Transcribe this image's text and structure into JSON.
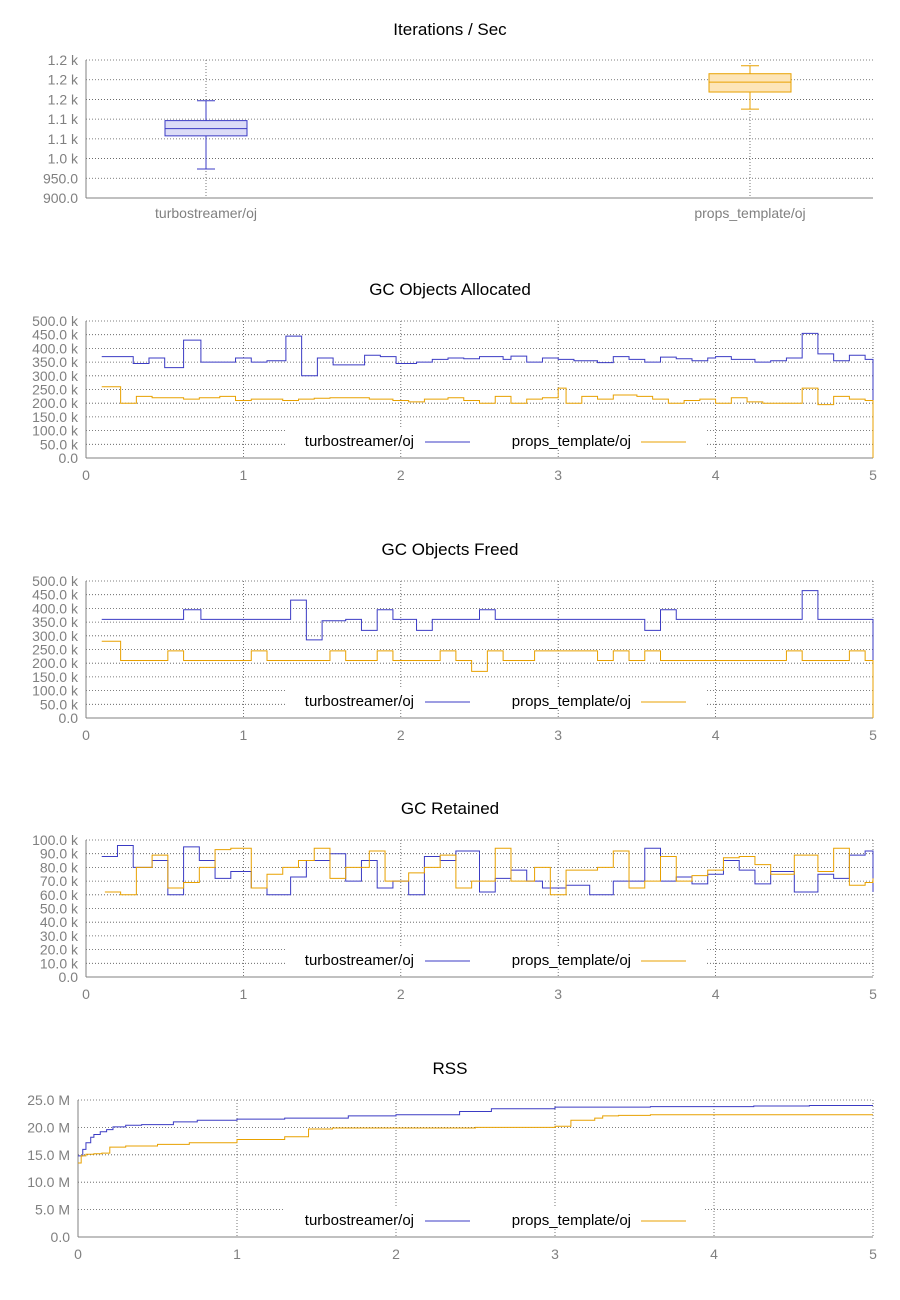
{
  "colors": {
    "turbo": "#3b3bc4",
    "props": "#e8a100",
    "turbo_fill": "#dcdcf7",
    "props_fill": "#fde5b8",
    "grid": "#555555",
    "axis": "#808080"
  },
  "chart_data": [
    {
      "type": "box",
      "title": "Iterations / Sec",
      "categories": [
        "turbostreamer/oj",
        "props_template/oj"
      ],
      "yticks": [
        "900.0",
        "950.0",
        "1.0 k",
        "1.1 k",
        "1.1 k",
        "1.2 k",
        "1.2 k",
        "1.2 k"
      ],
      "ylim": [
        900,
        1262
      ],
      "grid": true,
      "boxes": [
        {
          "name": "turbostreamer/oj",
          "min": 976,
          "q1": 1063,
          "median": 1082,
          "q3": 1103,
          "max": 1155
        },
        {
          "name": "props_template/oj",
          "min": 1133,
          "q1": 1178,
          "median": 1204,
          "q3": 1226,
          "max": 1247
        }
      ]
    },
    {
      "type": "line",
      "title": "GC Objects Allocated",
      "xlim": [
        0,
        5
      ],
      "ylim": [
        0,
        500000
      ],
      "xticks": [
        "0",
        "1",
        "2",
        "3",
        "4",
        "5"
      ],
      "yticks": [
        "0.0",
        "50.0 k",
        "100.0 k",
        "150.0 k",
        "200.0 k",
        "250.0 k",
        "300.0 k",
        "350.0 k",
        "400.0 k",
        "450.0 k",
        "500.0 k"
      ],
      "grid": true,
      "legend": "bottom-center",
      "series": [
        {
          "name": "turbostreamer/oj",
          "x": [
            0.1,
            0.3,
            0.4,
            0.5,
            0.62,
            0.73,
            0.95,
            1.05,
            1.15,
            1.27,
            1.37,
            1.47,
            1.57,
            1.77,
            1.87,
            1.97,
            2.1,
            2.2,
            2.3,
            2.4,
            2.5,
            2.65,
            2.7,
            2.8,
            2.9,
            3.0,
            3.1,
            3.25,
            3.35,
            3.45,
            3.55,
            3.65,
            3.75,
            3.85,
            3.95,
            4.0,
            4.1,
            4.25,
            4.35,
            4.45,
            4.55,
            4.65,
            4.75,
            4.85,
            4.95,
            5.0
          ],
          "y": [
            370000,
            345000,
            365000,
            330000,
            430000,
            350000,
            365000,
            350000,
            355000,
            445000,
            300000,
            365000,
            340000,
            375000,
            370000,
            345000,
            350000,
            360000,
            365000,
            362000,
            370000,
            360000,
            372000,
            350000,
            365000,
            360000,
            355000,
            348000,
            370000,
            360000,
            350000,
            368000,
            362000,
            355000,
            365000,
            370000,
            360000,
            350000,
            355000,
            365000,
            455000,
            380000,
            355000,
            375000,
            360000,
            0
          ]
        },
        {
          "name": "props_template/oj",
          "x": [
            0.1,
            0.22,
            0.32,
            0.42,
            0.62,
            0.72,
            0.85,
            0.95,
            1.05,
            1.25,
            1.35,
            1.45,
            1.55,
            1.7,
            1.8,
            1.95,
            2.05,
            2.15,
            2.3,
            2.4,
            2.5,
            2.6,
            2.7,
            2.8,
            2.9,
            3.0,
            3.05,
            3.15,
            3.25,
            3.35,
            3.5,
            3.6,
            3.7,
            3.8,
            3.9,
            4.0,
            4.1,
            4.2,
            4.3,
            4.45,
            4.55,
            4.65,
            4.75,
            4.85,
            4.95,
            5.0
          ],
          "y": [
            260000,
            200000,
            225000,
            220000,
            215000,
            220000,
            225000,
            210000,
            215000,
            210000,
            215000,
            218000,
            220000,
            220000,
            215000,
            210000,
            205000,
            215000,
            220000,
            210000,
            200000,
            225000,
            200000,
            215000,
            220000,
            255000,
            200000,
            225000,
            215000,
            230000,
            225000,
            215000,
            200000,
            210000,
            215000,
            200000,
            220000,
            205000,
            200000,
            200000,
            255000,
            195000,
            225000,
            215000,
            210000,
            0
          ]
        }
      ]
    },
    {
      "type": "line",
      "title": "GC Objects Freed",
      "xlim": [
        0,
        5
      ],
      "ylim": [
        0,
        500000
      ],
      "xticks": [
        "0",
        "1",
        "2",
        "3",
        "4",
        "5"
      ],
      "yticks": [
        "0.0",
        "50.0 k",
        "100.0 k",
        "150.0 k",
        "200.0 k",
        "250.0 k",
        "300.0 k",
        "350.0 k",
        "400.0 k",
        "450.0 k",
        "500.0 k"
      ],
      "grid": true,
      "legend": "bottom-center",
      "series": [
        {
          "name": "turbostreamer/oj",
          "x": [
            0.1,
            0.62,
            0.73,
            1.2,
            1.3,
            1.4,
            1.5,
            1.65,
            1.75,
            1.85,
            1.95,
            2.1,
            2.2,
            2.5,
            2.6,
            3.55,
            3.65,
            3.75,
            4.45,
            4.55,
            4.65,
            5.0
          ],
          "y": [
            360000,
            395000,
            360000,
            360000,
            430000,
            285000,
            355000,
            360000,
            320000,
            395000,
            360000,
            320000,
            360000,
            395000,
            360000,
            320000,
            395000,
            360000,
            360000,
            465000,
            360000,
            0
          ]
        },
        {
          "name": "props_template/oj",
          "x": [
            0.1,
            0.22,
            0.52,
            0.62,
            1.05,
            1.15,
            1.55,
            1.65,
            1.85,
            1.95,
            2.25,
            2.35,
            2.45,
            2.55,
            2.65,
            2.85,
            3.25,
            3.35,
            3.45,
            3.55,
            3.65,
            4.45,
            4.55,
            4.85,
            4.95,
            5.0
          ],
          "y": [
            280000,
            210000,
            245000,
            210000,
            245000,
            210000,
            245000,
            210000,
            245000,
            210000,
            245000,
            210000,
            170000,
            245000,
            210000,
            245000,
            210000,
            245000,
            210000,
            245000,
            210000,
            245000,
            210000,
            245000,
            210000,
            0
          ]
        }
      ]
    },
    {
      "type": "line",
      "title": "GC Retained",
      "xlim": [
        0,
        5
      ],
      "ylim": [
        0,
        100000
      ],
      "xticks": [
        "0",
        "1",
        "2",
        "3",
        "4",
        "5"
      ],
      "yticks": [
        "0.0",
        "10.0 k",
        "20.0 k",
        "30.0 k",
        "40.0 k",
        "50.0 k",
        "60.0 k",
        "70.0 k",
        "80.0 k",
        "90.0 k",
        "100.0 k"
      ],
      "grid": true,
      "legend": "bottom-center",
      "series": [
        {
          "name": "turbostreamer/oj",
          "x": [
            0.1,
            0.2,
            0.3,
            0.42,
            0.52,
            0.62,
            0.72,
            0.82,
            0.92,
            1.05,
            1.15,
            1.3,
            1.4,
            1.55,
            1.65,
            1.75,
            1.85,
            1.95,
            2.05,
            2.15,
            2.25,
            2.35,
            2.5,
            2.6,
            2.7,
            2.8,
            2.9,
            3.05,
            3.2,
            3.35,
            3.45,
            3.55,
            3.65,
            3.75,
            3.85,
            3.95,
            4.05,
            4.15,
            4.25,
            4.35,
            4.5,
            4.65,
            4.75,
            4.85,
            4.95,
            5.0
          ],
          "y": [
            88000,
            96000,
            80000,
            85000,
            60000,
            95000,
            85000,
            72000,
            77000,
            65000,
            60000,
            73000,
            85000,
            90000,
            70000,
            85000,
            65000,
            70000,
            60000,
            88000,
            85000,
            92000,
            62000,
            72000,
            78000,
            70000,
            65000,
            67000,
            60000,
            70000,
            70000,
            94000,
            70000,
            73000,
            68000,
            75000,
            85000,
            78000,
            68000,
            77000,
            62000,
            75000,
            72000,
            89000,
            92000,
            62000
          ]
        },
        {
          "name": "props_template/oj",
          "x": [
            0.12,
            0.22,
            0.32,
            0.42,
            0.52,
            0.62,
            0.72,
            0.82,
            0.92,
            1.05,
            1.15,
            1.25,
            1.35,
            1.45,
            1.55,
            1.65,
            1.8,
            1.9,
            2.05,
            2.15,
            2.25,
            2.35,
            2.45,
            2.6,
            2.7,
            2.85,
            2.95,
            3.05,
            3.25,
            3.35,
            3.45,
            3.55,
            3.65,
            3.75,
            3.85,
            3.95,
            4.05,
            4.15,
            4.25,
            4.35,
            4.5,
            4.65,
            4.75,
            4.85,
            4.95,
            5.0
          ],
          "y": [
            62000,
            60000,
            80000,
            89000,
            65000,
            69000,
            80000,
            93000,
            94000,
            65000,
            75000,
            80000,
            85000,
            94000,
            72000,
            80000,
            92000,
            70000,
            76000,
            80000,
            89000,
            65000,
            70000,
            94000,
            70000,
            80000,
            60000,
            78000,
            80000,
            92000,
            65000,
            70000,
            88000,
            70000,
            74000,
            78000,
            87000,
            88000,
            82000,
            75000,
            89000,
            77000,
            94000,
            67000,
            69000,
            72000
          ]
        }
      ]
    },
    {
      "type": "line",
      "title": "RSS",
      "xlim": [
        0,
        5
      ],
      "ylim": [
        0,
        25000000
      ],
      "xticks": [
        "0",
        "1",
        "2",
        "3",
        "4",
        "5"
      ],
      "yticks": [
        "0.0",
        "5.0 M",
        "10.0 M",
        "15.0 M",
        "20.0 M",
        "25.0 M"
      ],
      "grid": true,
      "legend": "bottom-center",
      "series": [
        {
          "name": "turbostreamer/oj",
          "x": [
            0.0,
            0.03,
            0.05,
            0.08,
            0.1,
            0.14,
            0.18,
            0.22,
            0.3,
            0.4,
            0.6,
            0.75,
            1.0,
            1.3,
            1.7,
            2.0,
            2.4,
            2.6,
            3.0,
            3.6,
            4.0,
            4.25,
            4.6,
            5.0
          ],
          "y": [
            14800000,
            16000000,
            17200000,
            18200000,
            18700000,
            19200000,
            19600000,
            20100000,
            20400000,
            20500000,
            21000000,
            21300000,
            21500000,
            21700000,
            22100000,
            22300000,
            22900000,
            23400000,
            23700000,
            23800000,
            23800000,
            23900000,
            24000000,
            24000000
          ]
        },
        {
          "name": "props_template/oj",
          "x": [
            0.0,
            0.02,
            0.05,
            0.1,
            0.15,
            0.2,
            0.3,
            0.5,
            0.7,
            1.0,
            1.3,
            1.45,
            1.6,
            2.0,
            2.35,
            2.5,
            3.0,
            3.1,
            3.25,
            3.3,
            3.4,
            3.6,
            4.0,
            4.5,
            5.0
          ],
          "y": [
            13500000,
            14800000,
            15100000,
            15200000,
            15300000,
            16400000,
            16600000,
            16900000,
            17200000,
            17800000,
            18300000,
            19700000,
            19900000,
            19900000,
            19900000,
            20000000,
            20200000,
            21300000,
            21700000,
            22100000,
            22200000,
            22300000,
            22300000,
            22300000,
            22300000
          ]
        }
      ]
    }
  ]
}
